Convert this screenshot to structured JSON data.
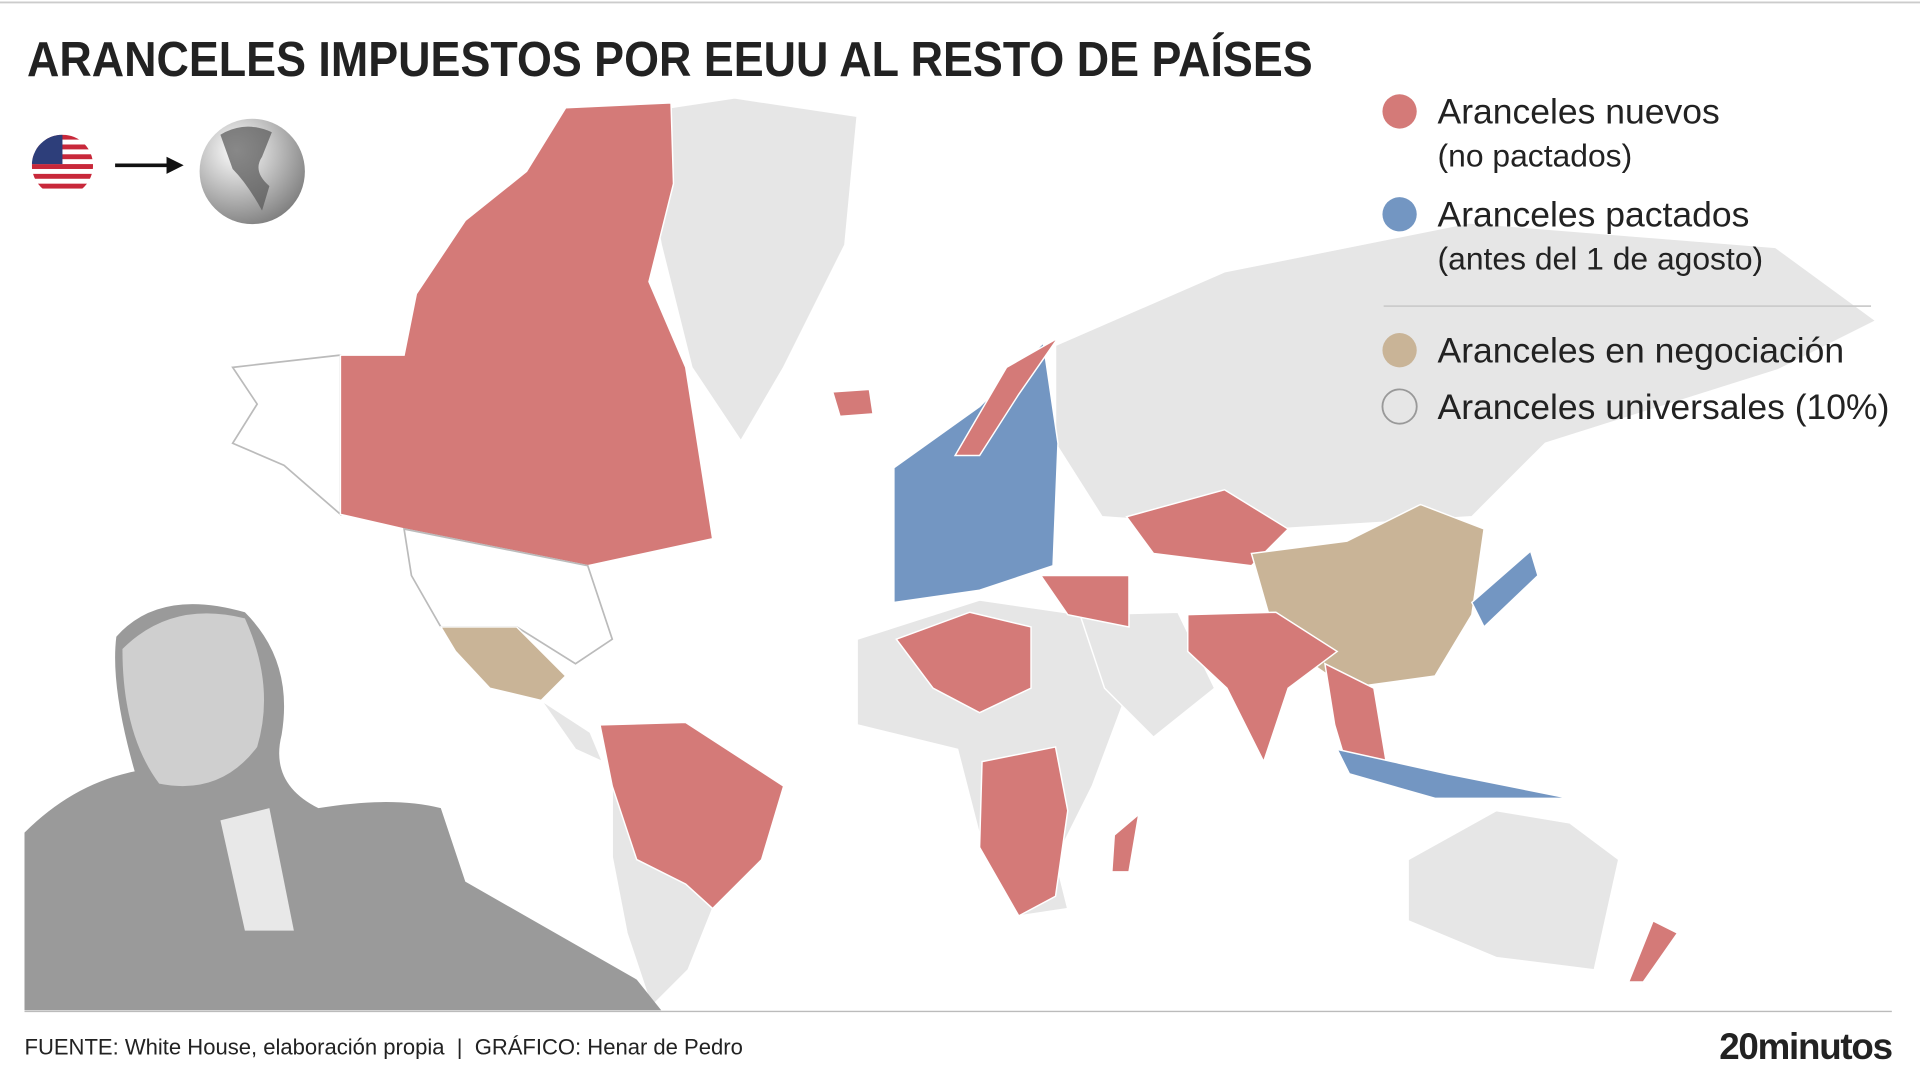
{
  "header": {
    "title": "ARANCELES IMPUESTOS POR EEUU AL RESTO DE PAÍSES"
  },
  "legend": {
    "items": [
      {
        "label": "Aranceles nuevos",
        "note": "(no pactados)",
        "color": "#d47a78"
      },
      {
        "label": "Aranceles pactados",
        "note": "(antes del 1 de agosto)",
        "color": "#7396c2"
      },
      {
        "label": "Aranceles en negociación",
        "color": "#c9b497"
      },
      {
        "label": "Aranceles universales (10%)",
        "color": "#e6e6e6"
      }
    ]
  },
  "footer": {
    "source": "FUENTE: White House, elaboración propia  |  GRÁFICO: Henar de Pedro",
    "brand": "20minutos"
  }
}
